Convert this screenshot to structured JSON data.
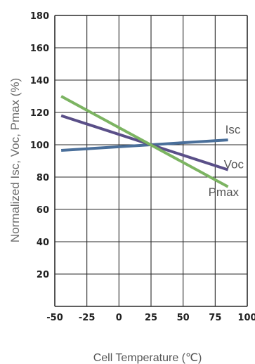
{
  "chart_data": {
    "type": "line",
    "xlabel": "Cell Temperature (℃)",
    "ylabel": "Normalized Isc, Voc, Pmax (%)",
    "xlim": [
      -50,
      100
    ],
    "ylim": [
      0,
      180
    ],
    "xticks": [
      "-50",
      "-25",
      "0",
      "25",
      "50",
      "75",
      "100"
    ],
    "xtick_values": [
      -50,
      -25,
      0,
      25,
      50,
      75,
      100
    ],
    "yticks": [
      "20",
      "40",
      "60",
      "80",
      "100",
      "120",
      "140",
      "160",
      "180"
    ],
    "ytick_values": [
      20,
      40,
      60,
      80,
      100,
      120,
      140,
      160,
      180
    ],
    "grid": true,
    "series": [
      {
        "name": "Isc",
        "color": "#4a6f9a",
        "x": [
          -45,
          85
        ],
        "y": [
          96.5,
          103
        ]
      },
      {
        "name": "Voc",
        "color": "#5a4f88",
        "x": [
          -45,
          85
        ],
        "y": [
          118,
          84.5
        ]
      },
      {
        "name": "Pmax",
        "color": "#7cb462",
        "x": [
          -45,
          85
        ],
        "y": [
          130,
          74
        ]
      }
    ]
  }
}
